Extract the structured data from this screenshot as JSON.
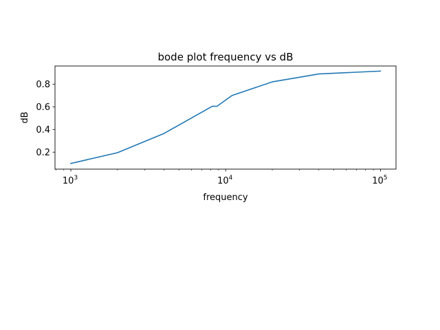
{
  "chart_data": {
    "type": "line",
    "title": "bode plot frequency vs dB",
    "xlabel": "frequency",
    "ylabel": "dB",
    "xscale": "log",
    "grid": false,
    "legend": "none",
    "xlim": [
      790,
      126000
    ],
    "ylim": [
      0.05,
      0.96
    ],
    "x_ticks": [
      {
        "value": 1000,
        "base": "10",
        "exponent": "3"
      },
      {
        "value": 10000,
        "base": "10",
        "exponent": "4"
      },
      {
        "value": 100000,
        "base": "10",
        "exponent": "5"
      }
    ],
    "y_ticks": [
      {
        "value": 0.2,
        "label": "0.2"
      },
      {
        "value": 0.4,
        "label": "0.4"
      },
      {
        "value": 0.6,
        "label": "0.6"
      },
      {
        "value": 0.8,
        "label": "0.8"
      }
    ],
    "series": [
      {
        "color": "#1f77b4",
        "x": [
          1000,
          2000,
          4000,
          8200,
          8800,
          11000,
          20000,
          40000,
          100000
        ],
        "y": [
          0.1,
          0.195,
          0.365,
          0.605,
          0.605,
          0.7,
          0.82,
          0.89,
          0.915
        ]
      }
    ]
  }
}
